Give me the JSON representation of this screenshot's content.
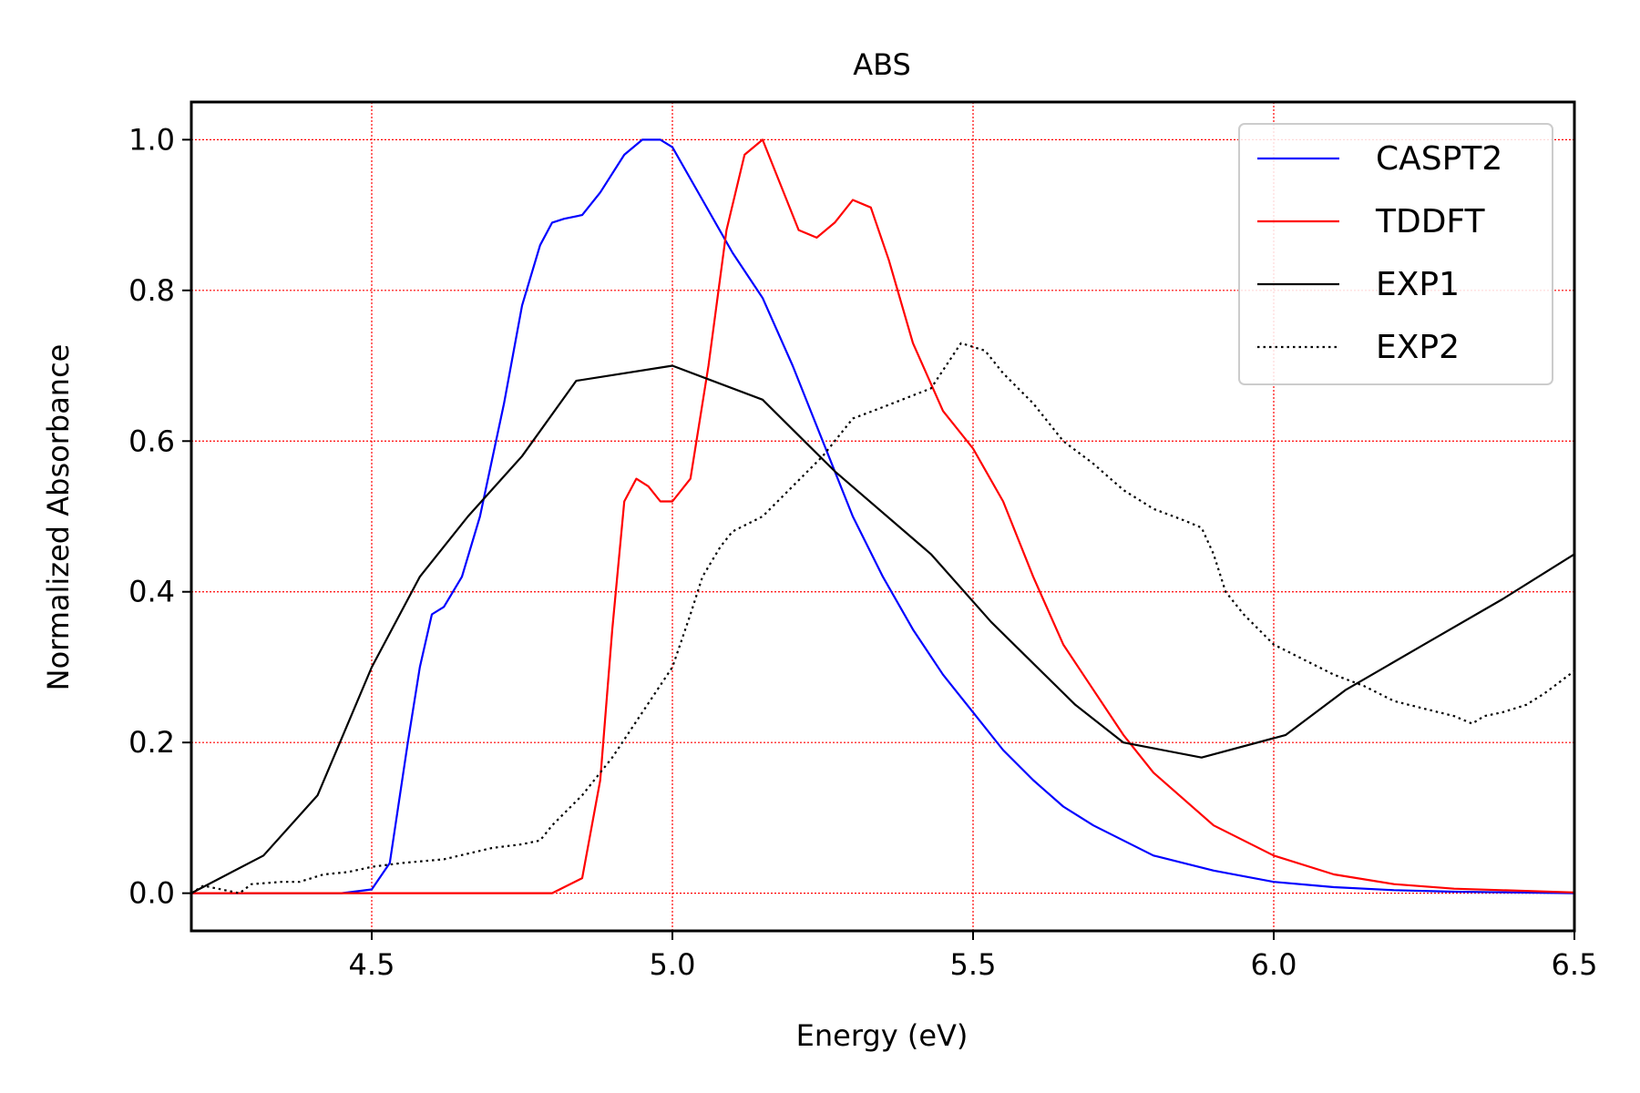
{
  "chart_data": {
    "type": "line",
    "title": "ABS",
    "xlabel": "Energy (eV)",
    "ylabel": "Normalized Absorbance",
    "xlim": [
      4.2,
      6.5
    ],
    "ylim": [
      -0.05,
      1.05
    ],
    "xticks": [
      4.5,
      5.0,
      5.5,
      6.0,
      6.5
    ],
    "xtick_labels": [
      "4.5",
      "5.0",
      "5.5",
      "6.0",
      "6.5"
    ],
    "yticks": [
      0.0,
      0.2,
      0.4,
      0.6,
      0.8,
      1.0
    ],
    "ytick_labels": [
      "0.0",
      "0.2",
      "0.4",
      "0.6",
      "0.8",
      "1.0"
    ],
    "grid": true,
    "grid_color": "#ff0000",
    "legend_position": "top-right",
    "series": [
      {
        "name": "CASPT2",
        "color": "#0000ff",
        "style": "solid",
        "x": [
          4.2,
          4.45,
          4.5,
          4.53,
          4.56,
          4.58,
          4.6,
          4.62,
          4.65,
          4.68,
          4.72,
          4.75,
          4.78,
          4.8,
          4.82,
          4.85,
          4.88,
          4.92,
          4.95,
          4.98,
          5.0,
          5.05,
          5.1,
          5.15,
          5.2,
          5.25,
          5.3,
          5.35,
          5.4,
          5.45,
          5.5,
          5.55,
          5.6,
          5.65,
          5.7,
          5.8,
          5.9,
          6.0,
          6.1,
          6.2,
          6.3,
          6.5
        ],
        "y": [
          0.0,
          0.0,
          0.005,
          0.04,
          0.2,
          0.3,
          0.37,
          0.38,
          0.42,
          0.5,
          0.65,
          0.78,
          0.86,
          0.89,
          0.895,
          0.9,
          0.93,
          0.98,
          1.0,
          1.0,
          0.99,
          0.92,
          0.85,
          0.79,
          0.7,
          0.6,
          0.5,
          0.42,
          0.35,
          0.29,
          0.24,
          0.19,
          0.15,
          0.115,
          0.09,
          0.05,
          0.03,
          0.015,
          0.008,
          0.004,
          0.002,
          0.0
        ]
      },
      {
        "name": "TDDFT",
        "color": "#ff0000",
        "style": "solid",
        "x": [
          4.2,
          4.8,
          4.85,
          4.88,
          4.9,
          4.92,
          4.94,
          4.96,
          4.98,
          5.0,
          5.03,
          5.06,
          5.09,
          5.12,
          5.15,
          5.18,
          5.21,
          5.24,
          5.27,
          5.3,
          5.33,
          5.36,
          5.4,
          5.45,
          5.5,
          5.55,
          5.6,
          5.65,
          5.7,
          5.75,
          5.8,
          5.9,
          6.0,
          6.1,
          6.2,
          6.3,
          6.5
        ],
        "y": [
          0.0,
          0.0,
          0.02,
          0.15,
          0.35,
          0.52,
          0.55,
          0.54,
          0.52,
          0.52,
          0.55,
          0.7,
          0.88,
          0.98,
          1.0,
          0.94,
          0.88,
          0.87,
          0.89,
          0.92,
          0.91,
          0.84,
          0.73,
          0.64,
          0.59,
          0.52,
          0.42,
          0.33,
          0.27,
          0.21,
          0.16,
          0.09,
          0.05,
          0.025,
          0.012,
          0.006,
          0.001
        ]
      },
      {
        "name": "EXP1",
        "color": "#000000",
        "style": "solid",
        "x": [
          4.2,
          4.32,
          4.41,
          4.5,
          4.58,
          4.66,
          4.75,
          4.84,
          5.0,
          5.15,
          5.27,
          5.43,
          5.53,
          5.67,
          5.75,
          5.88,
          6.02,
          6.12,
          6.25,
          6.38,
          6.5
        ],
        "y": [
          0.0,
          0.05,
          0.13,
          0.3,
          0.42,
          0.5,
          0.58,
          0.68,
          0.7,
          0.655,
          0.56,
          0.45,
          0.36,
          0.25,
          0.2,
          0.18,
          0.21,
          0.27,
          0.33,
          0.39,
          0.45
        ]
      },
      {
        "name": "EXP2",
        "color": "#000000",
        "style": "dotted",
        "x": [
          4.2,
          4.22,
          4.25,
          4.28,
          4.3,
          4.35,
          4.38,
          4.42,
          4.46,
          4.5,
          4.55,
          4.62,
          4.7,
          4.75,
          4.78,
          4.8,
          4.85,
          4.9,
          4.95,
          5.0,
          5.03,
          5.05,
          5.08,
          5.1,
          5.15,
          5.2,
          5.25,
          5.3,
          5.35,
          5.43,
          5.48,
          5.52,
          5.55,
          5.6,
          5.65,
          5.7,
          5.75,
          5.8,
          5.85,
          5.88,
          5.9,
          5.92,
          5.95,
          6.0,
          6.05,
          6.1,
          6.15,
          6.2,
          6.25,
          6.3,
          6.33,
          6.35,
          6.38,
          6.42,
          6.45,
          6.5
        ],
        "y": [
          0.0,
          0.01,
          0.005,
          0.0,
          0.012,
          0.015,
          0.015,
          0.025,
          0.028,
          0.035,
          0.04,
          0.045,
          0.06,
          0.065,
          0.07,
          0.09,
          0.13,
          0.18,
          0.24,
          0.3,
          0.37,
          0.42,
          0.46,
          0.48,
          0.5,
          0.54,
          0.58,
          0.63,
          0.645,
          0.67,
          0.73,
          0.72,
          0.69,
          0.65,
          0.6,
          0.57,
          0.535,
          0.51,
          0.495,
          0.485,
          0.45,
          0.4,
          0.37,
          0.33,
          0.31,
          0.29,
          0.275,
          0.255,
          0.245,
          0.235,
          0.225,
          0.235,
          0.24,
          0.25,
          0.265,
          0.295
        ]
      }
    ]
  }
}
